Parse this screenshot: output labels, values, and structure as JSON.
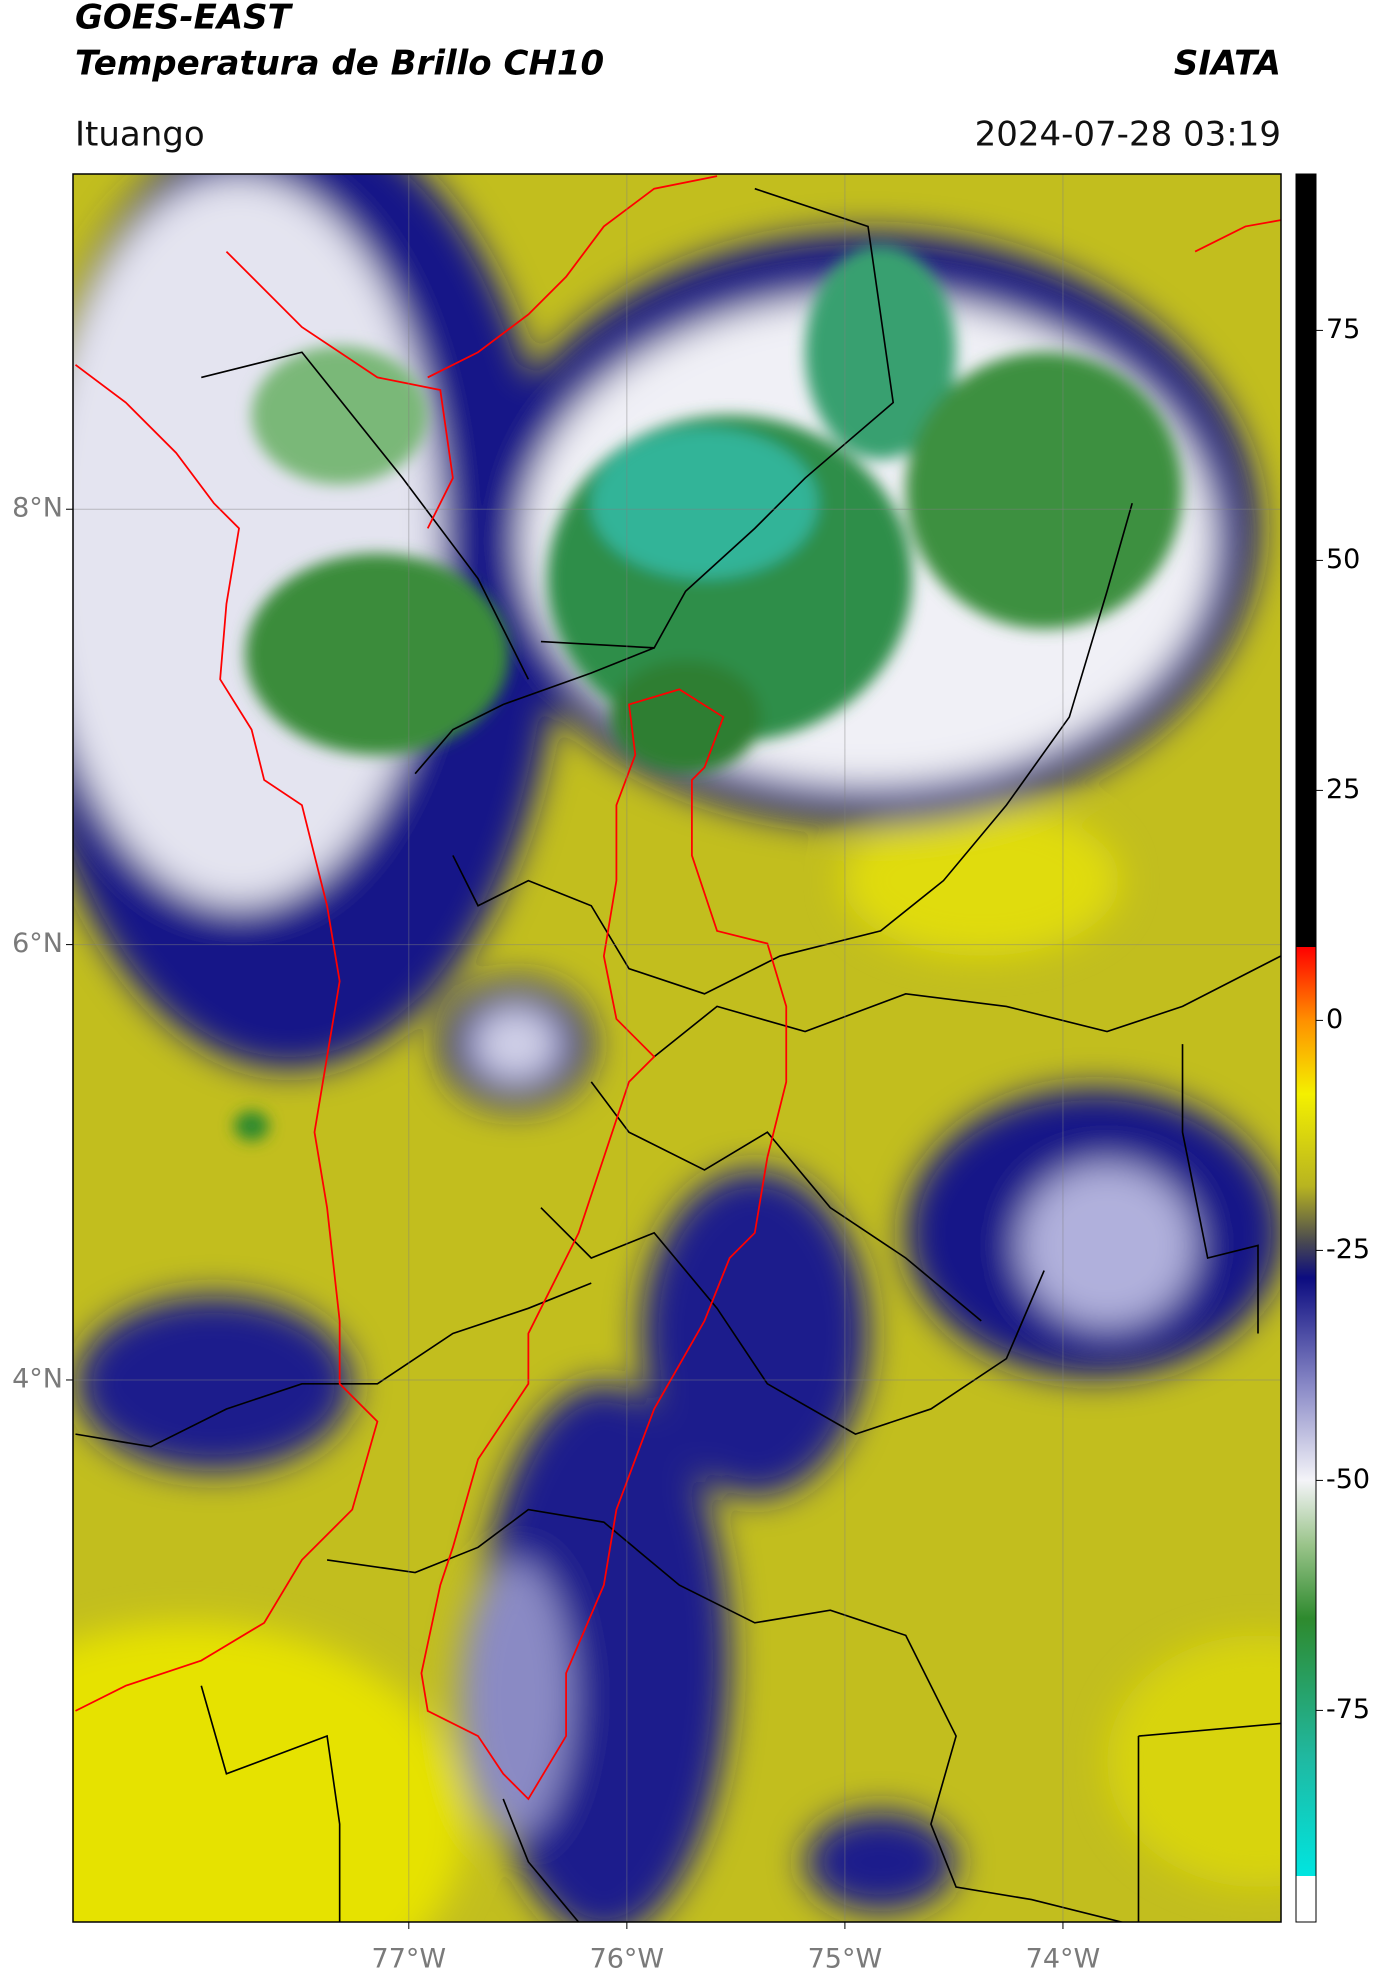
{
  "header": {
    "title": "GOES-EAST",
    "subtitle": "Temperatura de Brillo CH10",
    "source": "SIATA",
    "location": "Ituango",
    "timestamp": "2024-07-28 03:19"
  },
  "map": {
    "xlim": [
      -78.54,
      -73.0
    ],
    "ylim": [
      1.51,
      9.54
    ],
    "grid": true,
    "xticks": [
      {
        "value": -77,
        "label": "77°W"
      },
      {
        "value": -76,
        "label": "76°W"
      },
      {
        "value": -75,
        "label": "75°W"
      },
      {
        "value": -74,
        "label": "74°W"
      }
    ],
    "yticks": [
      {
        "value": 8,
        "label": "8°N"
      },
      {
        "value": 6,
        "label": "6°N"
      },
      {
        "value": 4,
        "label": "4°N"
      }
    ]
  },
  "colorbar": {
    "lim": [
      -98,
      92
    ],
    "ticks": [
      75,
      50,
      25,
      0,
      -25,
      -50,
      -75
    ],
    "stops": [
      {
        "value": -98,
        "color": "#ffffff"
      },
      {
        "value": -93,
        "color": "#ffffff"
      },
      {
        "value": -93,
        "color": "#00e5e0"
      },
      {
        "value": -80,
        "color": "#20b8a0"
      },
      {
        "value": -65,
        "color": "#2e8a2e"
      },
      {
        "value": -57,
        "color": "#9ac48a"
      },
      {
        "value": -50,
        "color": "#f4f4f8"
      },
      {
        "value": -40,
        "color": "#8c8cc8"
      },
      {
        "value": -28,
        "color": "#0c0c80"
      },
      {
        "value": -24,
        "color": "#4a4a50"
      },
      {
        "value": -18,
        "color": "#b8b420"
      },
      {
        "value": -8,
        "color": "#f4f000"
      },
      {
        "value": 0,
        "color": "#ff9000"
      },
      {
        "value": 8,
        "color": "#ff0000"
      },
      {
        "value": 8,
        "color": "#000000"
      },
      {
        "value": 92,
        "color": "#000000"
      }
    ]
  }
}
